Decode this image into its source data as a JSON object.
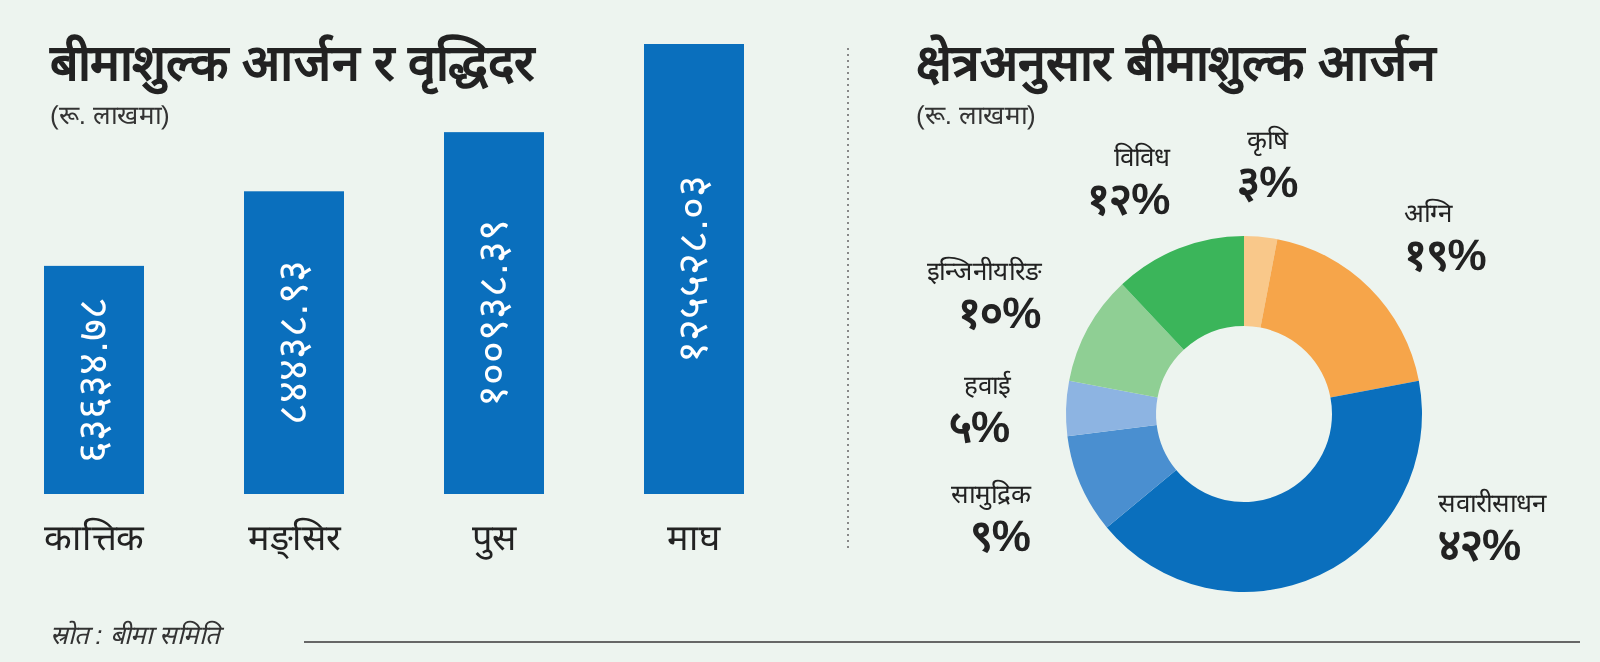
{
  "chart_data": [
    {
      "type": "bar",
      "title": "बीमाशुल्क आर्जन र वृद्धिदर",
      "subtitle": "(रू. लाखमा)",
      "categories": [
        "कात्तिक",
        "मङ्सिर",
        "पुस",
        "माघ"
      ],
      "values": [
        63634.78,
        84438.93,
        100938.39,
        125528.03
      ],
      "value_labels": [
        "६३६३४.७८",
        "८४४३८.९३",
        "१००९३८.३९",
        "१२५५२८.०३"
      ],
      "color": "#0a6fbd",
      "annotations": [
        "स्रोत : बीमा समिति"
      ]
    },
    {
      "type": "donut",
      "title": "क्षेत्रअनुसार बीमाशुल्क आर्जन",
      "subtitle": "(रू. लाखमा)",
      "categories": [
        "कृषि",
        "अग्नि",
        "सवारीसाधन",
        "सामुद्रिक",
        "हवाई",
        "इन्जिनीयरिङ",
        "विविध"
      ],
      "values": [
        3,
        19,
        42,
        9,
        5,
        10,
        12
      ],
      "value_labels": [
        "३%",
        "१९%",
        "४२%",
        "९%",
        "५%",
        "१०%",
        "१२%"
      ],
      "colors": [
        "#f9c88a",
        "#f6a54a",
        "#0a6fbd",
        "#4a8fd0",
        "#8db4e2",
        "#8fcf94",
        "#3bb55a"
      ]
    }
  ]
}
